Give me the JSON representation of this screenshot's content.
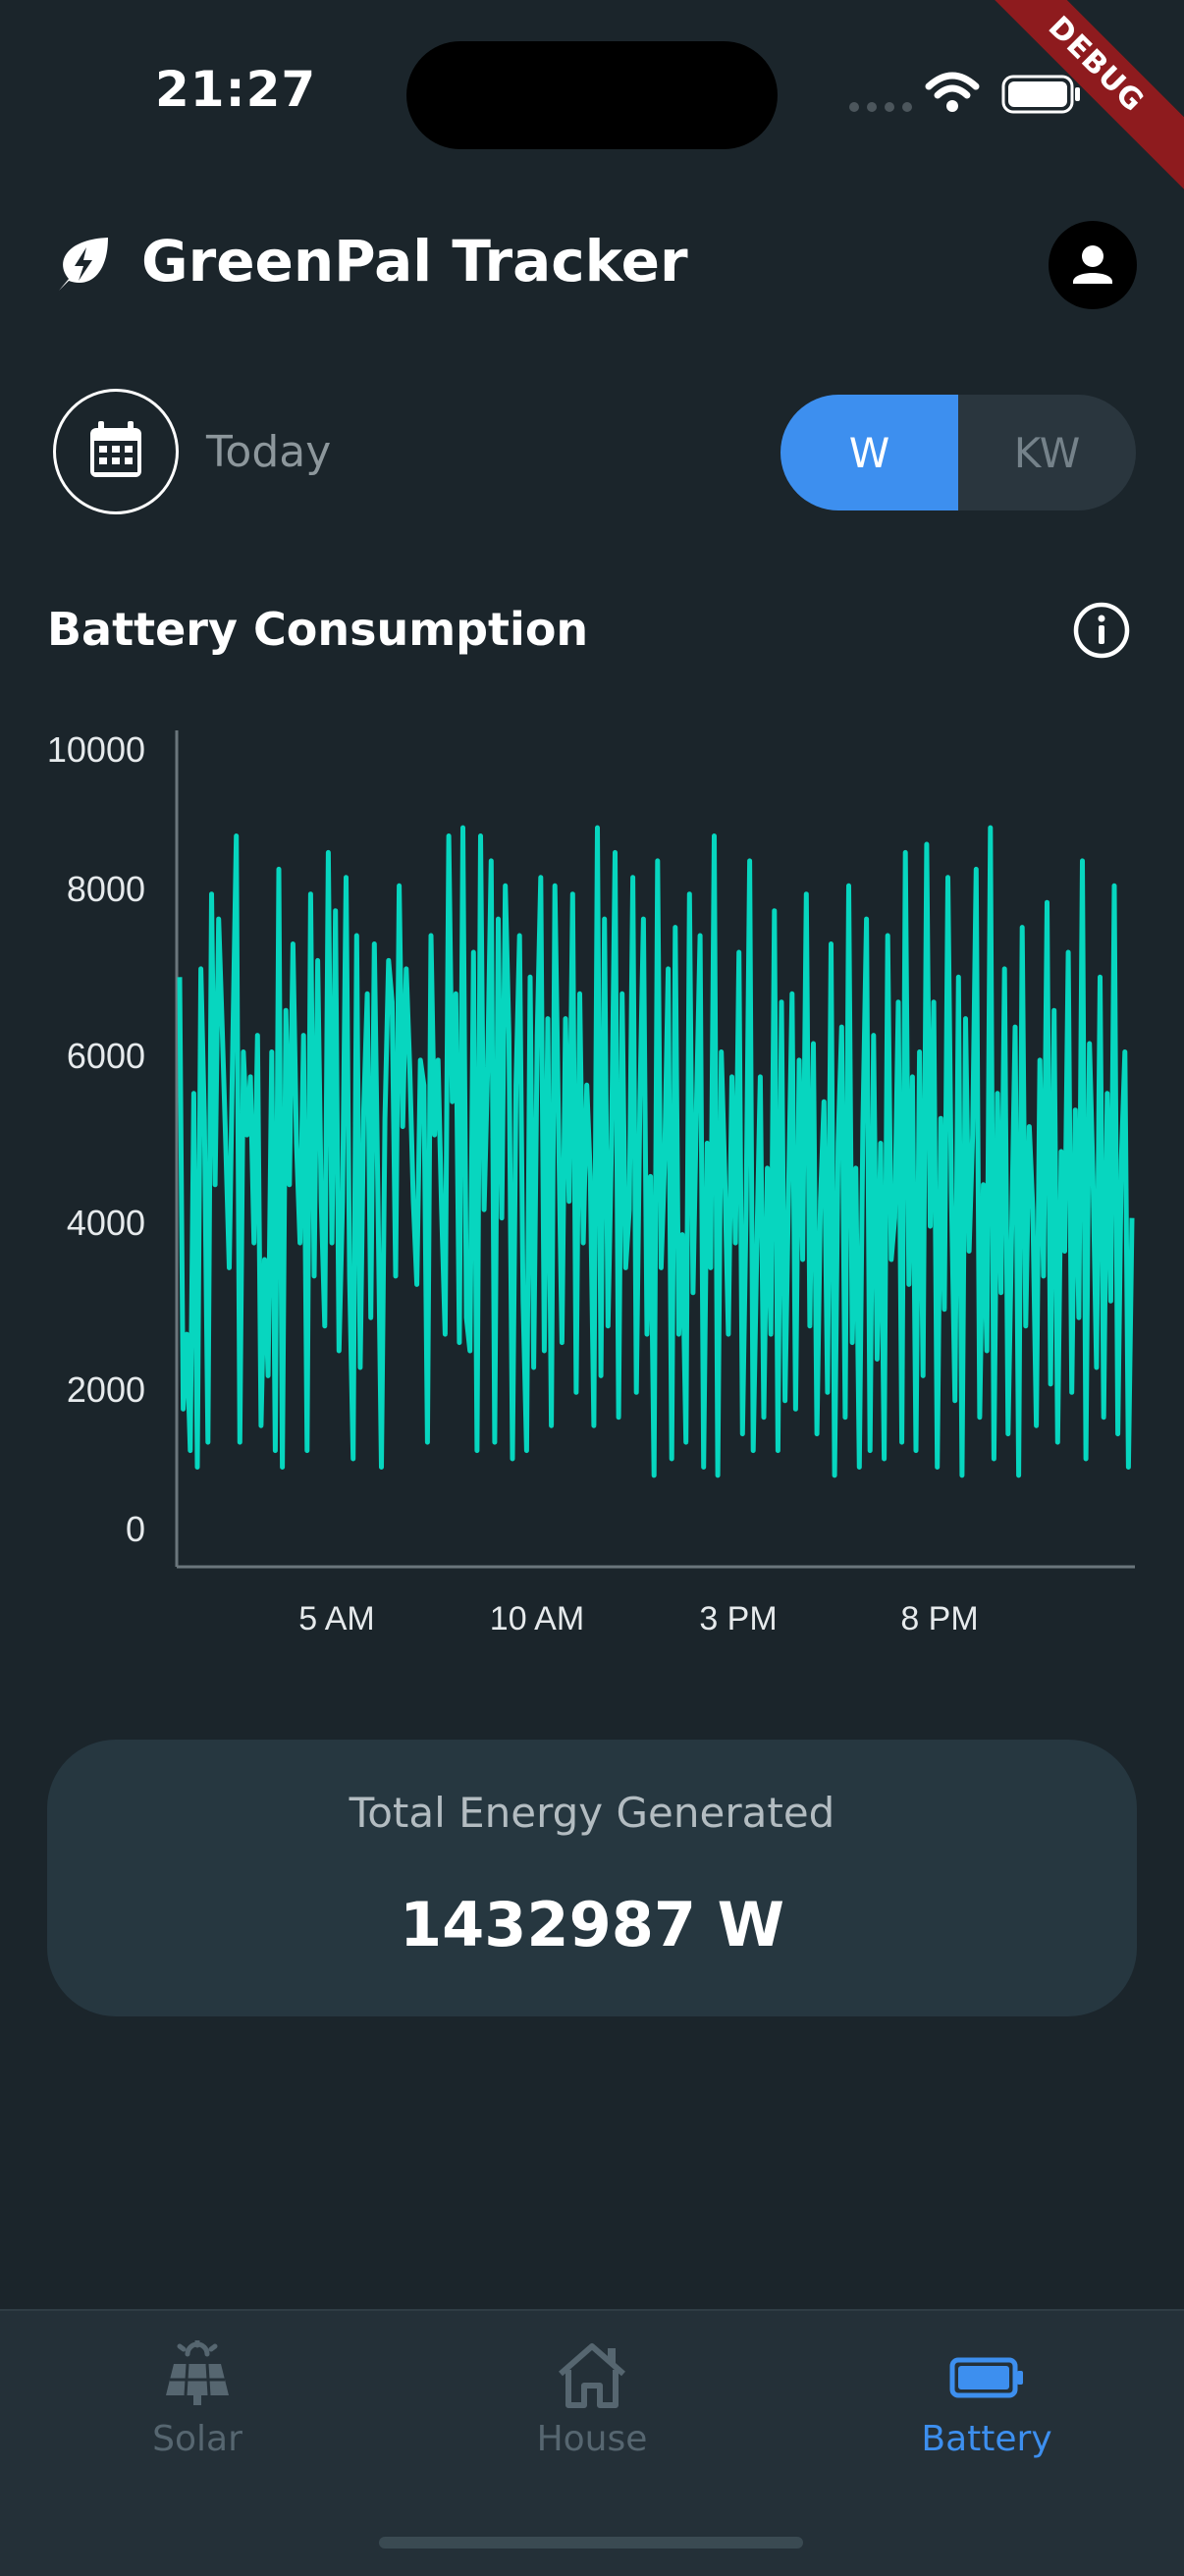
{
  "status_bar": {
    "time": "21:27",
    "debug_banner": "DEBUG"
  },
  "header": {
    "title": "GreenPal Tracker",
    "logo_icon": "leaf-bolt-icon",
    "profile_icon": "person-icon"
  },
  "controls": {
    "date_label": "Today",
    "unit_options": [
      "W",
      "KW"
    ],
    "selected_unit": "W"
  },
  "section": {
    "title": "Battery Consumption",
    "info_icon": "info-icon"
  },
  "chart_data": {
    "type": "line",
    "title": "",
    "xlabel": "",
    "ylabel": "",
    "y_ticks": [
      "10000",
      "8000",
      "6000",
      "4000",
      "2000",
      "0"
    ],
    "x_ticks": [
      "5 AM",
      "10 AM",
      "3 PM",
      "8 PM"
    ],
    "ylim": [
      0,
      10000
    ],
    "grid": false,
    "series": [
      {
        "color": "#07d6bf",
        "values": [
          7100,
          1900,
          2800,
          1400,
          5700,
          1200,
          7200,
          5400,
          1500,
          8100,
          4600,
          7800,
          6500,
          5100,
          3600,
          6300,
          8800,
          1500,
          6200,
          5200,
          5900,
          3900,
          6400,
          1700,
          3700,
          2300,
          6200,
          1400,
          8400,
          1200,
          6700,
          4600,
          7500,
          5100,
          3900,
          6400,
          1400,
          8100,
          3500,
          7300,
          4400,
          2900,
          8600,
          3900,
          7900,
          2600,
          4400,
          8300,
          3500,
          1300,
          7600,
          2400,
          5500,
          6900,
          3000,
          7500,
          4500,
          1200,
          5400,
          7300,
          6800,
          3500,
          8200,
          5300,
          7200,
          6000,
          4400,
          3400,
          6100,
          5800,
          1500,
          7600,
          5200,
          6100,
          4300,
          2800,
          8800,
          5600,
          6900,
          2700,
          8900,
          3000,
          2600,
          7400,
          1400,
          8800,
          4300,
          6000,
          8500,
          1500,
          7800,
          4200,
          8200,
          6400,
          1300,
          5800,
          7600,
          3200,
          1400,
          7100,
          2400,
          6400,
          8300,
          2600,
          6600,
          1700,
          8200,
          5400,
          2700,
          6600,
          4400,
          8100,
          2100,
          6900,
          3900,
          5800,
          4700,
          1700,
          8900,
          2300,
          7800,
          2900,
          5100,
          8600,
          1800,
          6900,
          3600,
          4300,
          8300,
          2100,
          5600,
          7800,
          2800,
          4700,
          1100,
          8500,
          3600,
          4900,
          7200,
          1300,
          7700,
          2800,
          4000,
          1500,
          8100,
          3300,
          5600,
          7600,
          1200,
          5100,
          3600,
          8800,
          1100,
          6200,
          4700,
          2800,
          5900,
          3900,
          7400,
          1600,
          4300,
          8500,
          1400,
          3800,
          5900,
          1800,
          4800,
          2800,
          7900,
          1400,
          6800,
          2000,
          4500,
          6900,
          1900,
          6100,
          3700,
          8100,
          2900,
          6300,
          1600,
          4400,
          5600,
          2100,
          7500,
          1100,
          5100,
          6500,
          1800,
          8200,
          2700,
          4800,
          1200,
          5300,
          7800,
          1400,
          6400,
          2500,
          5100,
          1300,
          7600,
          3700,
          4200,
          6800,
          1500,
          8600,
          3400,
          5900,
          1400,
          6200,
          2300,
          8700,
          4100,
          6800,
          1200,
          5400,
          3100,
          8300,
          4500,
          2000,
          7100,
          1100,
          6600,
          3800,
          5200,
          8400,
          1800,
          4600,
          2600,
          8900,
          1300,
          5700,
          3300,
          7200,
          1600,
          4000,
          6500,
          1100,
          7700,
          2900,
          5300,
          4300,
          1700,
          6100,
          3500,
          8000,
          2200,
          6700,
          1500,
          5000,
          3800,
          7400,
          2100,
          5500,
          3000,
          8500,
          1300,
          6300,
          4700,
          2400,
          7100,
          1800,
          5700,
          3200,
          8200,
          1600,
          4900,
          6200,
          1200,
          4200
        ]
      }
    ]
  },
  "total_card": {
    "label": "Total Energy Generated",
    "value": "1432987 W"
  },
  "nav": {
    "items": [
      {
        "label": "Solar",
        "icon": "solar-panel-icon",
        "active": false
      },
      {
        "label": "House",
        "icon": "house-icon",
        "active": false
      },
      {
        "label": "Battery",
        "icon": "battery-icon",
        "active": true
      }
    ],
    "active_color": "#3d8fef",
    "inactive_color": "#566670"
  }
}
